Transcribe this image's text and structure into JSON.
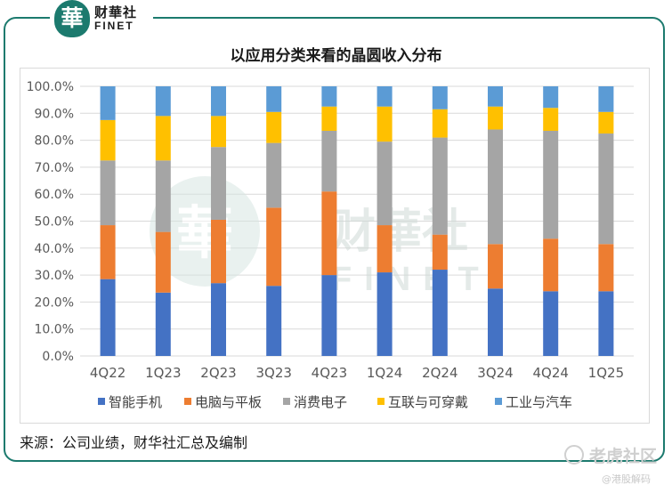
{
  "header": {
    "logo_char": "華",
    "logo_cn": "财華社",
    "logo_en": "FINET"
  },
  "chart_data": {
    "type": "bar",
    "stacked": true,
    "title": "以应用分类来看的晶圆收入分布",
    "categories": [
      "4Q22",
      "1Q23",
      "2Q23",
      "3Q23",
      "4Q23",
      "1Q24",
      "2Q24",
      "3Q24",
      "4Q24",
      "1Q25"
    ],
    "ylim": [
      0,
      100
    ],
    "yticks": [
      "0.0%",
      "10.0%",
      "20.0%",
      "30.0%",
      "40.0%",
      "50.0%",
      "60.0%",
      "70.0%",
      "80.0%",
      "90.0%",
      "100.0%"
    ],
    "grid": true,
    "legend_position": "bottom",
    "series": [
      {
        "name": "智能手机",
        "color": "#4472c4",
        "values": [
          28.5,
          23.5,
          27.0,
          26.0,
          30.0,
          31.0,
          32.0,
          25.0,
          24.0,
          24.0
        ]
      },
      {
        "name": "电脑与平板",
        "color": "#ed7d31",
        "values": [
          20.0,
          22.5,
          23.5,
          29.0,
          31.0,
          17.5,
          13.0,
          16.5,
          19.5,
          17.5
        ]
      },
      {
        "name": "消费电子",
        "color": "#a5a5a5",
        "values": [
          24.0,
          26.5,
          27.0,
          24.0,
          22.5,
          31.0,
          36.0,
          42.5,
          40.0,
          41.0
        ]
      },
      {
        "name": "互联与可穿戴",
        "color": "#ffc000",
        "values": [
          15.0,
          16.5,
          11.5,
          11.5,
          9.0,
          13.0,
          10.5,
          8.5,
          8.5,
          8.0
        ]
      },
      {
        "name": "工业与汽车",
        "color": "#5b9bd5",
        "values": [
          12.5,
          11.0,
          11.0,
          9.5,
          7.5,
          7.5,
          8.5,
          7.5,
          8.0,
          9.5
        ]
      }
    ]
  },
  "watermark": {
    "cn": "财華社",
    "en": "FINET",
    "char": "華"
  },
  "footer": {
    "source": "来源：公司业绩，财华社汇总及编制",
    "brand": "老虎社区",
    "brand_sub": "@港股解码"
  }
}
